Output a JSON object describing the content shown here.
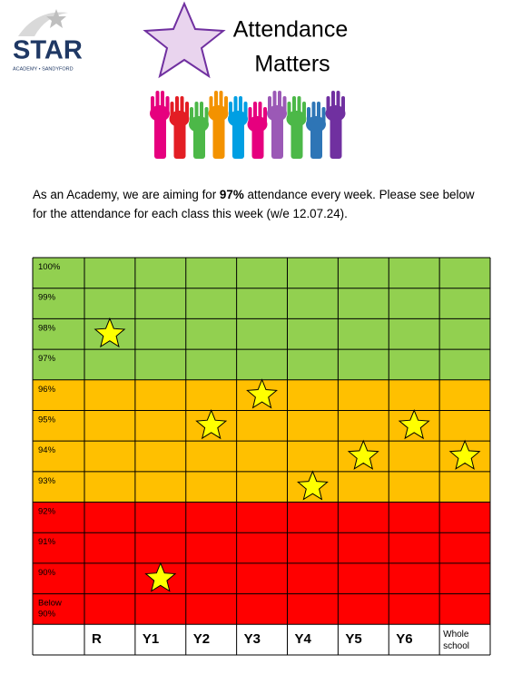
{
  "header": {
    "logo_name": "STAR",
    "logo_subtitle": "ACADEMY • SANDYFORD",
    "banner_title_1": "Attendance",
    "banner_title_2": "Matters"
  },
  "intro": {
    "text_1": "As an Academy, we are aiming for ",
    "target": "97%",
    "text_2": " attendance every week. Please see below for the attendance for each class this week (w/e 12.07.24)."
  },
  "chart_data": {
    "type": "star-grid",
    "categories": [
      "R",
      "Y1",
      "Y2",
      "Y3",
      "Y4",
      "Y5",
      "Y6",
      "Whole school"
    ],
    "values": [
      98,
      90,
      95,
      96,
      93,
      94,
      95,
      94
    ],
    "yticks": [
      {
        "value": 100,
        "label": "100%"
      },
      {
        "value": 99,
        "label": "99%"
      },
      {
        "value": 98,
        "label": "98%"
      },
      {
        "value": 97,
        "label": "97%"
      },
      {
        "value": 96,
        "label": "96%"
      },
      {
        "value": 95,
        "label": "95%"
      },
      {
        "value": 94,
        "label": "94%"
      },
      {
        "value": 93,
        "label": "93%"
      },
      {
        "value": 92,
        "label": "92%"
      },
      {
        "value": 91,
        "label": "91%"
      },
      {
        "value": 90,
        "label": "90%"
      },
      {
        "value": 89,
        "label": "Below 90%"
      }
    ],
    "row_colors": [
      "#92d050",
      "#92d050",
      "#92d050",
      "#92d050",
      "#ffc000",
      "#ffc000",
      "#ffc000",
      "#ffc000",
      "#ff0000",
      "#ff0000",
      "#ff0000",
      "#ff0000"
    ],
    "color": "#ffff00"
  }
}
